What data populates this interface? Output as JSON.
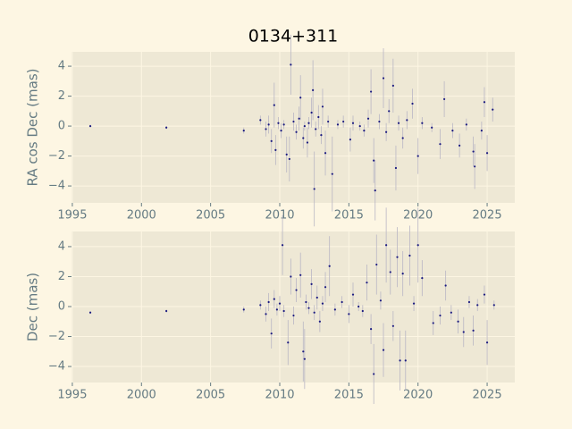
{
  "chart_data": [
    {
      "type": "scatter",
      "title": "0134+311",
      "ylabel": "RA cos Dec (mas)",
      "color": "#1a1a80",
      "error_color": "#b9b6c4",
      "xlim": [
        1994.94,
        2027.0
      ],
      "ylim": [
        -5.13,
        4.96
      ],
      "xticks": [
        1995,
        2000,
        2005,
        2010,
        2015,
        2020,
        2025
      ],
      "yticks": [
        {
          "value": -4,
          "label": "−4"
        },
        {
          "value": -2,
          "label": "−2"
        },
        0,
        2,
        4
      ],
      "grid": true,
      "x": [
        1996.3,
        2001.8,
        2007.4,
        2008.6,
        2009.0,
        2009.2,
        2009.4,
        2009.6,
        2009.7,
        2009.9,
        2010.1,
        2010.3,
        2010.5,
        2010.7,
        2010.8,
        2011.0,
        2011.2,
        2011.4,
        2011.5,
        2011.7,
        2011.8,
        2012.0,
        2012.1,
        2012.3,
        2012.4,
        2012.5,
        2012.6,
        2012.8,
        2013.0,
        2013.1,
        2013.3,
        2013.5,
        2013.8,
        2014.2,
        2014.6,
        2015.1,
        2015.3,
        2015.8,
        2016.1,
        2016.4,
        2016.6,
        2016.8,
        2016.9,
        2017.2,
        2017.5,
        2017.7,
        2017.9,
        2018.2,
        2018.4,
        2018.6,
        2018.9,
        2019.2,
        2019.6,
        2020.0,
        2020.3,
        2021.0,
        2021.6,
        2021.9,
        2022.5,
        2023.0,
        2023.5,
        2024.0,
        2024.1,
        2024.6,
        2024.8,
        2025.0,
        2025.4
      ],
      "values": [
        0.0,
        -0.1,
        -0.3,
        0.4,
        -0.2,
        0.1,
        -1.0,
        1.4,
        -1.6,
        0.2,
        -0.3,
        0.1,
        -1.9,
        -2.2,
        4.1,
        0.3,
        -0.4,
        0.5,
        1.9,
        -0.8,
        0.0,
        -1.1,
        0.2,
        0.9,
        2.4,
        -4.2,
        -0.2,
        0.6,
        -0.6,
        1.3,
        -1.8,
        0.3,
        -3.2,
        0.1,
        0.3,
        -0.9,
        0.2,
        0.0,
        -0.3,
        0.5,
        2.3,
        -2.3,
        -4.3,
        0.3,
        3.2,
        -0.4,
        1.0,
        2.7,
        -2.8,
        0.2,
        -0.8,
        0.4,
        1.5,
        -2.0,
        0.2,
        -0.1,
        -1.2,
        1.8,
        -0.3,
        -1.3,
        0.1,
        -1.7,
        -2.7,
        -0.3,
        1.6,
        -1.8,
        1.1
      ],
      "errors": [
        0.1,
        0.1,
        0.2,
        0.3,
        0.5,
        0.6,
        0.8,
        1.5,
        1.0,
        0.4,
        0.5,
        0.3,
        1.2,
        1.5,
        2.0,
        0.6,
        0.5,
        0.8,
        1.5,
        0.7,
        0.3,
        1.0,
        0.4,
        1.0,
        2.0,
        2.5,
        0.5,
        0.8,
        0.6,
        1.2,
        1.5,
        0.4,
        2.5,
        0.3,
        0.4,
        0.8,
        0.5,
        0.3,
        0.4,
        0.6,
        1.5,
        1.5,
        2.0,
        0.5,
        2.0,
        0.6,
        0.8,
        1.8,
        1.5,
        0.5,
        0.7,
        0.6,
        1.0,
        1.2,
        0.4,
        0.3,
        1.0,
        1.2,
        0.5,
        0.8,
        0.4,
        1.0,
        1.5,
        0.6,
        1.0,
        1.2,
        0.8
      ]
    },
    {
      "type": "scatter",
      "ylabel": "Dec (mas)",
      "color": "#1a1a80",
      "error_color": "#b9b6c4",
      "xlim": [
        1994.94,
        2027.0
      ],
      "ylim": [
        -5.07,
        5.01
      ],
      "xticks": [
        1995,
        2000,
        2005,
        2010,
        2015,
        2020,
        2025
      ],
      "yticks": [
        {
          "value": -4,
          "label": "−4"
        },
        {
          "value": -2,
          "label": "−2"
        },
        0,
        2,
        4
      ],
      "grid": true,
      "x": [
        1996.3,
        2001.8,
        2007.4,
        2008.6,
        2009.0,
        2009.2,
        2009.4,
        2009.6,
        2009.8,
        2010.0,
        2010.2,
        2010.3,
        2010.6,
        2010.8,
        2011.0,
        2011.2,
        2011.5,
        2011.7,
        2011.8,
        2011.9,
        2012.1,
        2012.3,
        2012.5,
        2012.7,
        2012.9,
        2013.1,
        2013.3,
        2013.6,
        2014.0,
        2014.5,
        2015.0,
        2015.3,
        2015.7,
        2016.0,
        2016.3,
        2016.6,
        2016.8,
        2017.0,
        2017.3,
        2017.5,
        2017.7,
        2018.0,
        2018.2,
        2018.5,
        2018.7,
        2018.9,
        2019.1,
        2019.4,
        2019.7,
        2020.0,
        2020.3,
        2021.1,
        2021.6,
        2022.0,
        2022.4,
        2022.9,
        2023.3,
        2023.7,
        2024.0,
        2024.3,
        2024.8,
        2025.0,
        2025.5
      ],
      "values": [
        -0.4,
        -0.3,
        -0.2,
        0.1,
        -0.5,
        0.3,
        -1.8,
        0.5,
        -0.2,
        0.2,
        4.1,
        -0.3,
        -2.4,
        2.0,
        -0.6,
        1.1,
        2.1,
        -3.0,
        -3.5,
        0.3,
        -0.1,
        1.5,
        -0.4,
        0.6,
        -1.0,
        0.2,
        1.3,
        2.7,
        -0.2,
        0.3,
        -0.5,
        0.8,
        0.0,
        -0.3,
        1.6,
        -1.5,
        -4.5,
        2.8,
        0.4,
        -2.9,
        4.1,
        2.3,
        -1.3,
        3.3,
        -3.6,
        2.2,
        -3.6,
        3.4,
        0.2,
        4.1,
        1.9,
        -1.1,
        -0.6,
        1.4,
        -0.4,
        -1.0,
        -1.7,
        0.3,
        -1.6,
        0.1,
        0.8,
        -2.4,
        0.1
      ],
      "errors": [
        0.1,
        0.1,
        0.2,
        0.3,
        0.5,
        0.6,
        1.0,
        0.6,
        0.4,
        0.5,
        2.0,
        0.4,
        1.5,
        1.2,
        0.6,
        0.8,
        1.5,
        2.0,
        2.0,
        0.5,
        0.4,
        1.0,
        0.5,
        0.8,
        0.7,
        0.5,
        1.0,
        2.0,
        0.4,
        0.4,
        0.6,
        0.8,
        0.3,
        0.4,
        1.2,
        1.0,
        2.0,
        2.0,
        0.6,
        1.8,
        2.5,
        1.5,
        1.0,
        2.0,
        2.0,
        1.5,
        2.0,
        2.0,
        0.5,
        2.5,
        1.2,
        0.8,
        0.6,
        1.0,
        0.5,
        0.8,
        1.0,
        0.4,
        1.0,
        0.4,
        0.6,
        1.5,
        0.3
      ]
    }
  ]
}
